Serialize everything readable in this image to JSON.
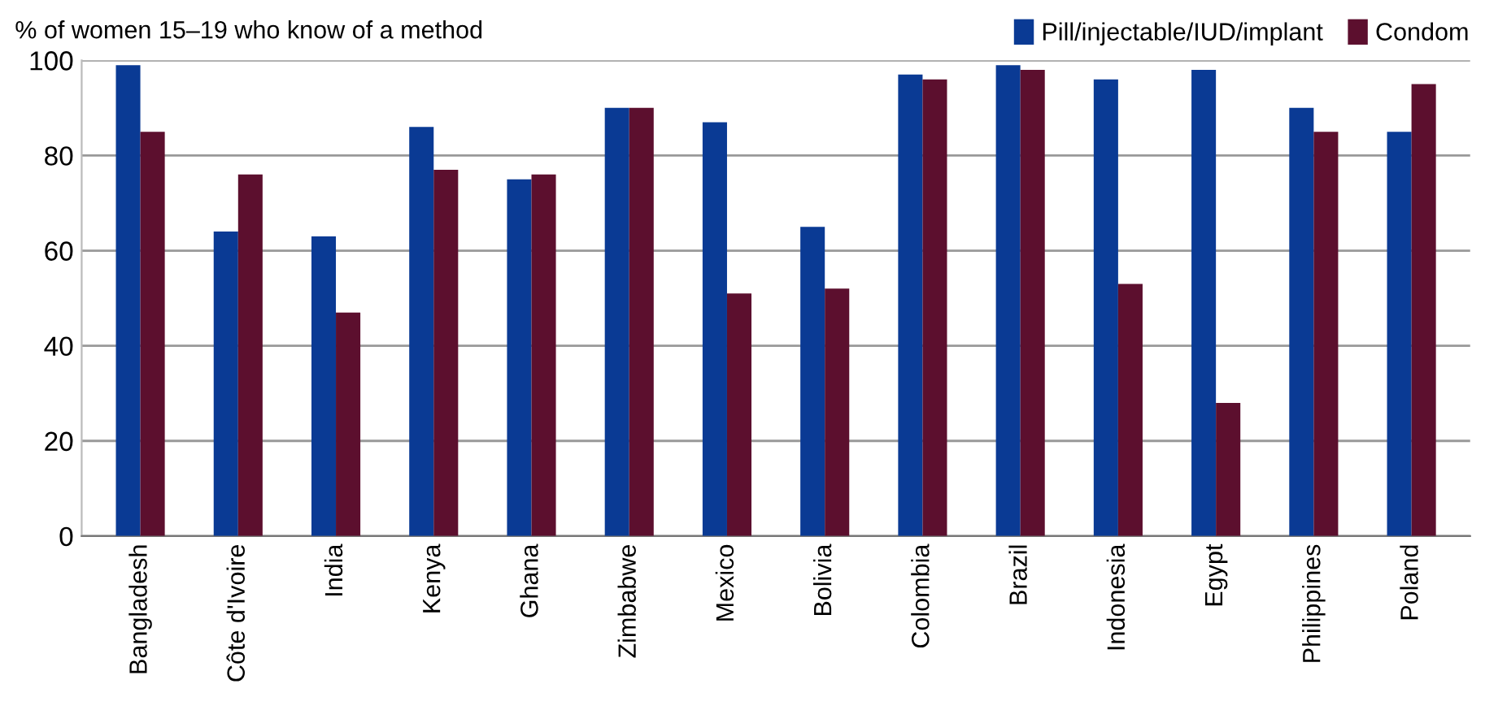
{
  "chart_data": {
    "type": "bar",
    "ylabel": "% of women 15–19 who know of a method",
    "categories": [
      "Bangladesh",
      "Côte d'Ivoire",
      "India",
      "Kenya",
      "Ghana",
      "Zimbabwe",
      "Mexico",
      "Bolivia",
      "Colombia",
      "Brazil",
      "Indonesia",
      "Egypt",
      "Philippines",
      "Poland"
    ],
    "series": [
      {
        "name": "Pill/injectable/IUD/implant",
        "color": "#0a3a94",
        "values": [
          99,
          64,
          63,
          86,
          75,
          90,
          87,
          65,
          97,
          99,
          96,
          98,
          90,
          85
        ]
      },
      {
        "name": "Condom",
        "color": "#5c0f2e",
        "values": [
          85,
          76,
          47,
          77,
          76,
          90,
          51,
          52,
          96,
          98,
          53,
          28,
          85,
          95
        ]
      }
    ],
    "ylim": [
      0,
      100
    ],
    "yticks": [
      0,
      20,
      40,
      60,
      80,
      100
    ],
    "grid": "y",
    "legend": "top right"
  }
}
